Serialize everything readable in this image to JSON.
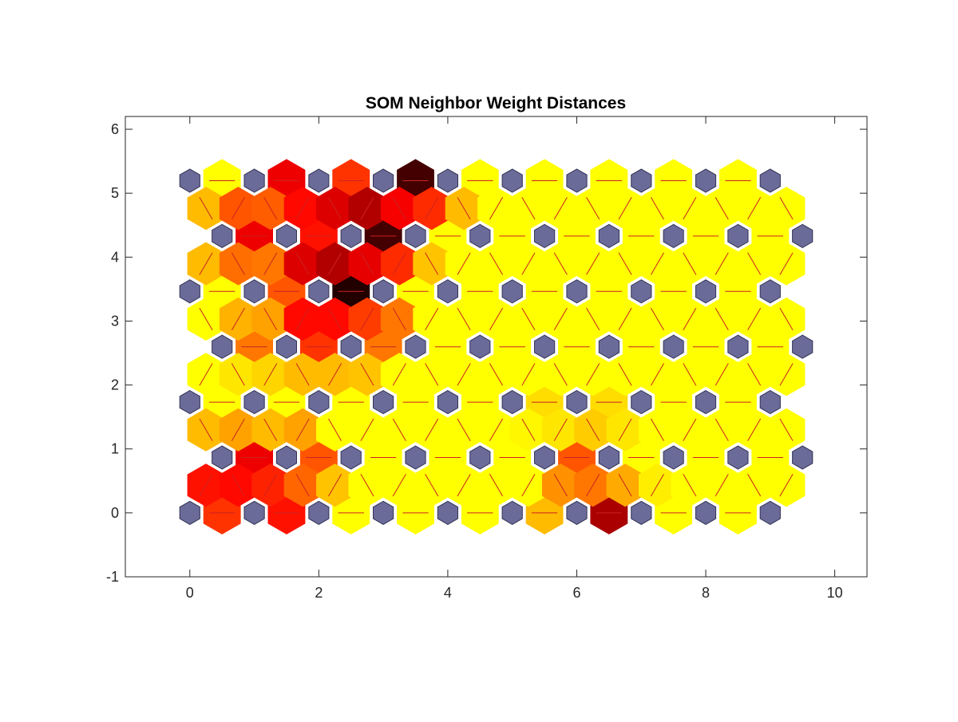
{
  "chart_data": {
    "type": "heatmap",
    "subtype": "som-neighbor-distances",
    "title": "SOM Neighbor Weight Distances",
    "xlabel": "",
    "ylabel": "",
    "xlim": [
      -1,
      10.5
    ],
    "ylim": [
      -1,
      6.2
    ],
    "xticks": [
      0,
      2,
      4,
      6,
      8,
      10
    ],
    "yticks": [
      -1,
      0,
      1,
      2,
      3,
      4,
      5,
      6
    ],
    "grid": false,
    "colormap": "hot (black = large distance, yellow = small distance)",
    "neuron_color": "#6b6b99",
    "link_line_color": "#cc2222",
    "grid_size": {
      "cols": 10,
      "rows": 7
    },
    "neurons": [
      {
        "row": 0,
        "xs": [
          0,
          1,
          2,
          3,
          4,
          5,
          6,
          7,
          8,
          9
        ],
        "y": 0
      },
      {
        "row": 1,
        "xs": [
          0.5,
          1.5,
          2.5,
          3.5,
          4.5,
          5.5,
          6.5,
          7.5,
          8.5,
          9.5
        ],
        "y": 0.866
      },
      {
        "row": 2,
        "xs": [
          0,
          1,
          2,
          3,
          4,
          5,
          6,
          7,
          8,
          9
        ],
        "y": 1.732
      },
      {
        "row": 3,
        "xs": [
          0.5,
          1.5,
          2.5,
          3.5,
          4.5,
          5.5,
          6.5,
          7.5,
          8.5,
          9.5
        ],
        "y": 2.598
      },
      {
        "row": 4,
        "xs": [
          0,
          1,
          2,
          3,
          4,
          5,
          6,
          7,
          8,
          9
        ],
        "y": 3.464
      },
      {
        "row": 5,
        "xs": [
          0.5,
          1.5,
          2.5,
          3.5,
          4.5,
          5.5,
          6.5,
          7.5,
          8.5,
          9.5
        ],
        "y": 4.33
      },
      {
        "row": 6,
        "xs": [
          0,
          1,
          2,
          3,
          4,
          5,
          6,
          7,
          8,
          9
        ],
        "y": 5.196
      }
    ],
    "link_distances_normalized": "0 = small (yellow) to 1 = large (black); values estimated from colors",
    "horizontal_links": [
      [
        0.55,
        0.6,
        0.15,
        0.05,
        0.05,
        0.35,
        0.75,
        0.05,
        0.05
      ],
      [
        0.65,
        0.5,
        0.1,
        0.05,
        0.05,
        0.5,
        0.2,
        0.1,
        0.05
      ],
      [
        0.05,
        0.2,
        0.2,
        0.15,
        0.2,
        0.3,
        0.3,
        0.15,
        0.2
      ],
      [
        0.45,
        0.55,
        0.45,
        0.2,
        0.2,
        0.2,
        0.2,
        0.15,
        0.05
      ],
      [
        0.05,
        0.5,
        0.95,
        0.2,
        0.05,
        0.05,
        0.2,
        0.15,
        0.15
      ],
      [
        0.65,
        0.6,
        0.9,
        0.2,
        0.05,
        0.25,
        0.05,
        0.05,
        0.05
      ],
      [
        0.05,
        0.65,
        0.55,
        0.9,
        0.25,
        0.25,
        0.05,
        0.05,
        0.05
      ]
    ],
    "cell_colors_hint": "full hexagon tessellation of link distances; grey hexagons mark neuron positions"
  }
}
